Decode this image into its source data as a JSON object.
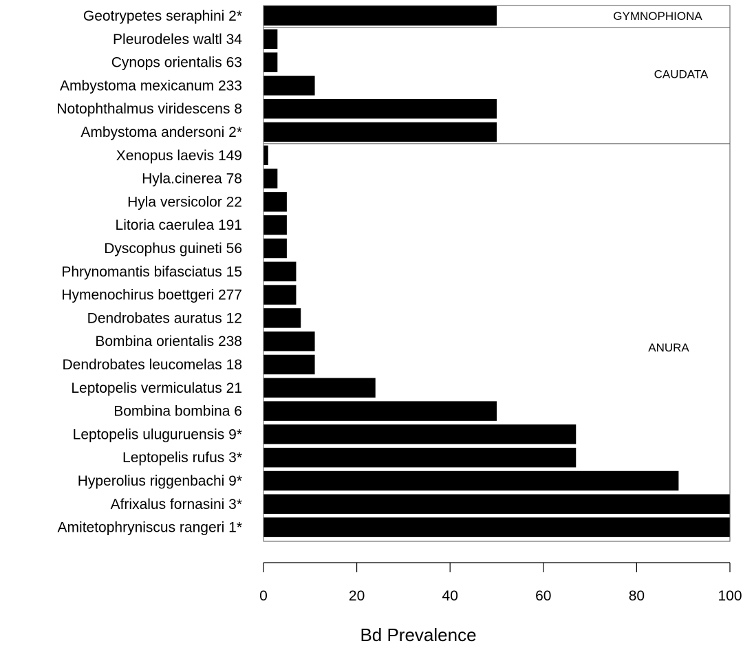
{
  "chart_data": {
    "type": "bar",
    "orientation": "horizontal",
    "title": "",
    "xlabel": "Bd Prevalence",
    "ylabel": "",
    "xlim": [
      0,
      100
    ],
    "x_ticks": [
      "0",
      "20",
      "40",
      "60",
      "80",
      "100"
    ],
    "grid": false,
    "bar_color": "#000000",
    "categories": [
      "Geotrypetes seraphini 2*",
      "Pleurodeles waltl 34",
      "Cynops orientalis 63",
      "Ambystoma mexicanum 233",
      "Notophthalmus viridescens 8",
      "Ambystoma andersoni 2*",
      "Xenopus laevis 149",
      "Hyla.cinerea 78",
      "Hyla versicolor 22",
      "Litoria caerulea 191",
      "Dyscophus guineti 56",
      "Phrynomantis bifasciatus 15",
      "Hymenochirus boettgeri 277",
      "Dendrobates auratus 12",
      "Bombina orientalis 238",
      "Dendrobates leucomelas 18",
      "Leptopelis vermiculatus 21",
      "Bombina bombina 6",
      "Leptopelis uluguruensis 9*",
      "Leptopelis rufus 3*",
      "Hyperolius  riggenbachi 9*",
      "Afrixalus fornasini 3*",
      "Amitetophryniscus rangeri 1*"
    ],
    "values": [
      50,
      3,
      3,
      11,
      50,
      50,
      1,
      3,
      5,
      5,
      5,
      7,
      7,
      8,
      11,
      11,
      24,
      50,
      67,
      67,
      89,
      100,
      100
    ],
    "groups": [
      {
        "label": "GYMNOPHIONA",
        "first_index": 0,
        "last_index": 0
      },
      {
        "label": "CAUDATA",
        "first_index": 1,
        "last_index": 5
      },
      {
        "label": "ANURA",
        "first_index": 6,
        "last_index": 22
      }
    ]
  }
}
